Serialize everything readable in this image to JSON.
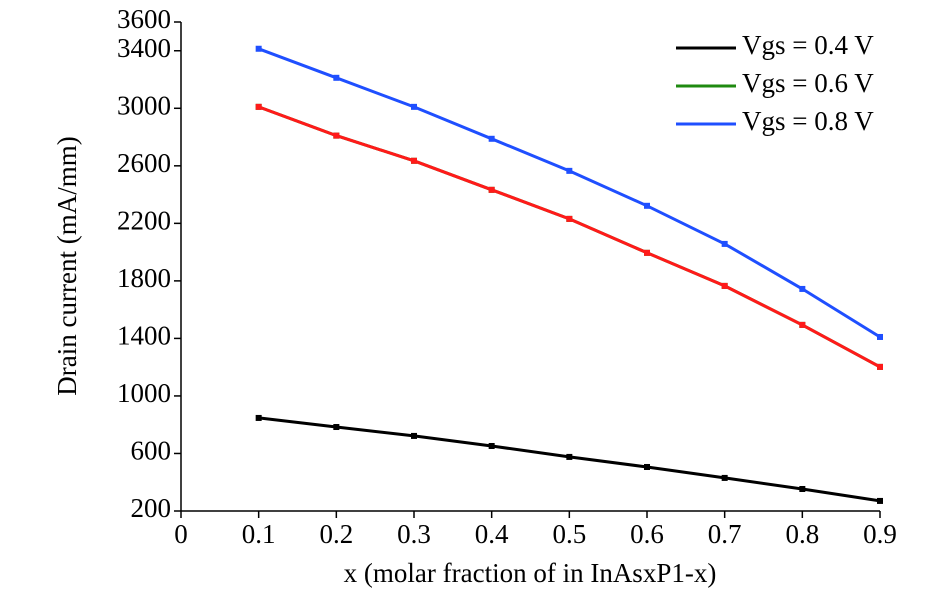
{
  "chart_data": {
    "type": "line",
    "x_label": "x (molar fraction of in InAsxP1-x)",
    "y_label": "Drain current (mA/mm)",
    "x": [
      0.1,
      0.2,
      0.3,
      0.4,
      0.5,
      0.6,
      0.7,
      0.8,
      0.9
    ],
    "xlim": [
      0,
      0.9
    ],
    "xticks": [
      0,
      0.1,
      0.2,
      0.3,
      0.4,
      0.5,
      0.6,
      0.7,
      0.8,
      0.9
    ],
    "ylim": [
      200,
      3600
    ],
    "yticks": [
      200,
      600,
      1000,
      1400,
      1800,
      2200,
      2600,
      3000,
      3400,
      3600
    ],
    "grid": false,
    "legend": "upper right",
    "series": [
      {
        "name": "Vgs = 0.4 V",
        "color": "#000000",
        "values": [
          847,
          784,
          722,
          652,
          576,
          506,
          430,
          353,
          270
        ]
      },
      {
        "name": "Vgs = 0.6 V",
        "color": "#1f8a10",
        "values": [
          3010,
          2810,
          2635,
          2433,
          2231,
          1995,
          1765,
          1494,
          1202
        ]
      },
      {
        "name": "Vgs = 0.8 V",
        "color": "#1f4fff",
        "values": [
          3414,
          3212,
          3010,
          2788,
          2565,
          2322,
          2057,
          1744,
          1410
        ]
      },
      {
        "color": "#ff1a1a",
        "values": [
          3010,
          2810,
          2635,
          2433,
          2231,
          1995,
          1765,
          1494,
          1202
        ]
      }
    ]
  }
}
